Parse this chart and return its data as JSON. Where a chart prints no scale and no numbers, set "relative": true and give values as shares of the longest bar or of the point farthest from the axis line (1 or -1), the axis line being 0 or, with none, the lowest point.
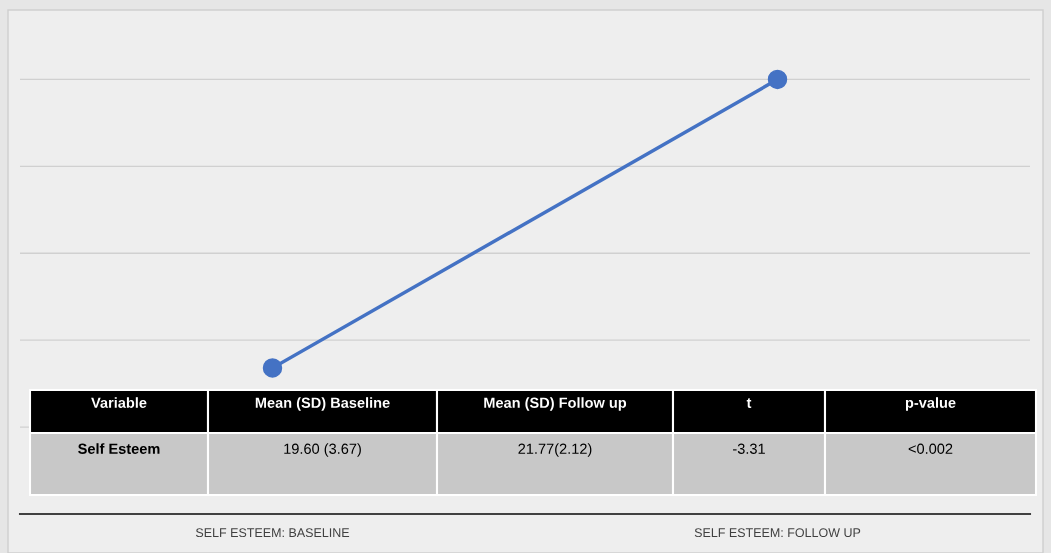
{
  "chart_data": {
    "type": "line",
    "categories": [
      "SELF ESTEEM: BASELINE",
      "SELF ESTEEM: FOLLOW UP"
    ],
    "series": [
      {
        "color": "#4472c4",
        "values": [
          0.336,
          1
        ]
      }
    ],
    "relative": true,
    "tick_labels": "x",
    "grid": "y",
    "marker": "circle",
    "line_style": "solid",
    "annotations": [
      "Variable",
      "Mean (SD) Baseline",
      "Mean (SD) Follow up",
      "t",
      "p-value",
      "Self Esteem",
      "19.60 (3.67)",
      "21.77(2.12)",
      "-3.31",
      "<0.002"
    ]
  }
}
